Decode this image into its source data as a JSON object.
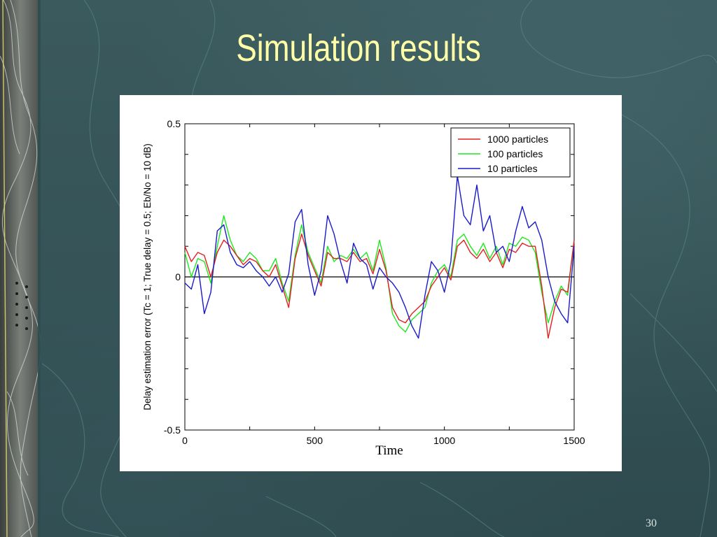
{
  "slide": {
    "title": "Simulation results",
    "page_number": "30"
  },
  "colors": {
    "background": "#2f4a4f",
    "title": "#ffffa8",
    "series_1000": "#e32020",
    "series_100": "#1ee81e",
    "series_10": "#1a1acc"
  },
  "chart_data": {
    "type": "line",
    "title": "",
    "xlabel": "Time",
    "ylabel": "Delay estimation error (Tc = 1; True delay = 0.5; Eb/No = 10 dB)",
    "xlim": [
      0,
      1500
    ],
    "ylim": [
      -0.5,
      0.5
    ],
    "xticks": [
      0,
      500,
      1000,
      1500
    ],
    "xtick_labels": [
      "0",
      "500",
      "1000",
      "1500"
    ],
    "yticks": [
      -0.5,
      0,
      0.5
    ],
    "ytick_labels": [
      "-0.5",
      "0",
      "0.5"
    ],
    "zero_line": true,
    "legend_position": "top-right",
    "x": [
      0,
      25,
      50,
      75,
      100,
      125,
      150,
      175,
      200,
      225,
      250,
      275,
      300,
      325,
      350,
      375,
      400,
      425,
      450,
      475,
      500,
      525,
      550,
      575,
      600,
      625,
      650,
      675,
      700,
      725,
      750,
      775,
      800,
      825,
      850,
      875,
      900,
      925,
      950,
      975,
      1000,
      1025,
      1050,
      1075,
      1100,
      1125,
      1150,
      1175,
      1200,
      1225,
      1250,
      1275,
      1300,
      1325,
      1350,
      1375,
      1400,
      1425,
      1450,
      1475,
      1500
    ],
    "series": [
      {
        "name": "1000 particles",
        "color": "#e32020",
        "values": [
          0.1,
          0.05,
          0.08,
          0.07,
          0.0,
          0.08,
          0.12,
          0.1,
          0.07,
          0.04,
          0.06,
          0.05,
          0.02,
          0.0,
          0.04,
          -0.03,
          -0.1,
          0.06,
          0.14,
          0.07,
          0.02,
          -0.03,
          0.08,
          0.06,
          0.06,
          0.05,
          0.08,
          0.05,
          0.06,
          0.01,
          0.09,
          0.02,
          -0.1,
          -0.14,
          -0.15,
          -0.12,
          -0.1,
          -0.08,
          -0.03,
          0.0,
          0.03,
          -0.01,
          0.1,
          0.12,
          0.08,
          0.06,
          0.09,
          0.05,
          0.08,
          0.03,
          0.09,
          0.08,
          0.11,
          0.1,
          0.1,
          -0.03,
          -0.2,
          -0.1,
          -0.04,
          -0.05,
          0.12
        ]
      },
      {
        "name": "100 particles",
        "color": "#1ee81e",
        "values": [
          0.08,
          0.0,
          0.06,
          0.05,
          -0.02,
          0.1,
          0.2,
          0.12,
          0.07,
          0.05,
          0.08,
          0.06,
          0.02,
          0.02,
          0.06,
          -0.02,
          -0.08,
          0.07,
          0.17,
          0.08,
          0.03,
          -0.02,
          0.1,
          0.05,
          0.07,
          0.06,
          0.09,
          0.06,
          0.08,
          0.02,
          0.12,
          0.03,
          -0.12,
          -0.16,
          -0.18,
          -0.14,
          -0.12,
          -0.1,
          -0.02,
          0.02,
          0.04,
          0.0,
          0.12,
          0.14,
          0.1,
          0.07,
          0.11,
          0.06,
          0.1,
          0.04,
          0.11,
          0.1,
          0.13,
          0.12,
          0.08,
          -0.05,
          -0.15,
          -0.08,
          -0.03,
          -0.06,
          0.12
        ]
      },
      {
        "name": "10 particles",
        "color": "#1a1acc",
        "values": [
          -0.02,
          -0.04,
          0.04,
          -0.12,
          -0.05,
          0.15,
          0.17,
          0.08,
          0.04,
          0.03,
          0.05,
          0.02,
          0.0,
          -0.03,
          0.0,
          -0.05,
          0.01,
          0.18,
          0.22,
          0.04,
          -0.06,
          0.02,
          0.2,
          0.14,
          0.05,
          -0.02,
          0.11,
          0.06,
          0.04,
          -0.04,
          0.03,
          0.0,
          -0.02,
          -0.05,
          -0.1,
          -0.16,
          -0.2,
          -0.06,
          0.05,
          0.02,
          -0.05,
          0.05,
          0.33,
          0.2,
          0.17,
          0.3,
          0.15,
          0.2,
          0.08,
          0.1,
          0.05,
          0.15,
          0.23,
          0.16,
          0.18,
          0.12,
          0.0,
          -0.08,
          -0.12,
          -0.15,
          0.1
        ]
      }
    ]
  }
}
